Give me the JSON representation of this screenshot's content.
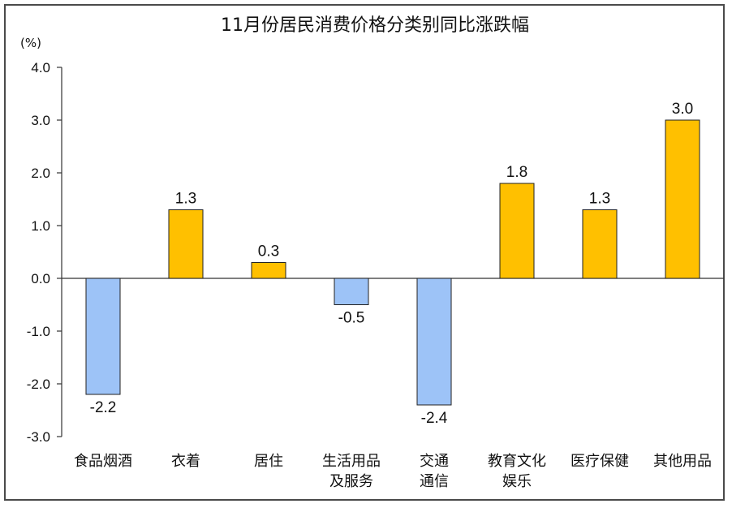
{
  "chart_data": {
    "type": "bar",
    "title": "11月份居民消费价格分类别同比涨跌幅",
    "unit_label": "(%)",
    "ylim": [
      -3.0,
      4.0
    ],
    "yticks": [
      "4.0",
      "3.0",
      "2.0",
      "1.0",
      "0.0",
      "-1.0",
      "-2.0",
      "-3.0"
    ],
    "categories": [
      [
        "食品烟酒"
      ],
      [
        "衣着"
      ],
      [
        "居住"
      ],
      [
        "生活用品",
        "及服务"
      ],
      [
        "交通",
        "通信"
      ],
      [
        "教育文化",
        "娱乐"
      ],
      [
        "医疗保健"
      ],
      [
        "其他用品"
      ]
    ],
    "values": [
      -2.2,
      1.3,
      0.3,
      -0.5,
      -2.4,
      1.8,
      1.3,
      3.0
    ],
    "data_labels": [
      "-2.2",
      "1.3",
      "0.3",
      "-0.5",
      "-2.4",
      "1.8",
      "1.3",
      "3.0"
    ],
    "colors": {
      "positive": "#FFC000",
      "negative": "#9DC3F7",
      "bar_stroke": "#222222",
      "axis": "#333333",
      "frame": "#4a4a4a"
    },
    "grid": false,
    "legend": "none"
  }
}
